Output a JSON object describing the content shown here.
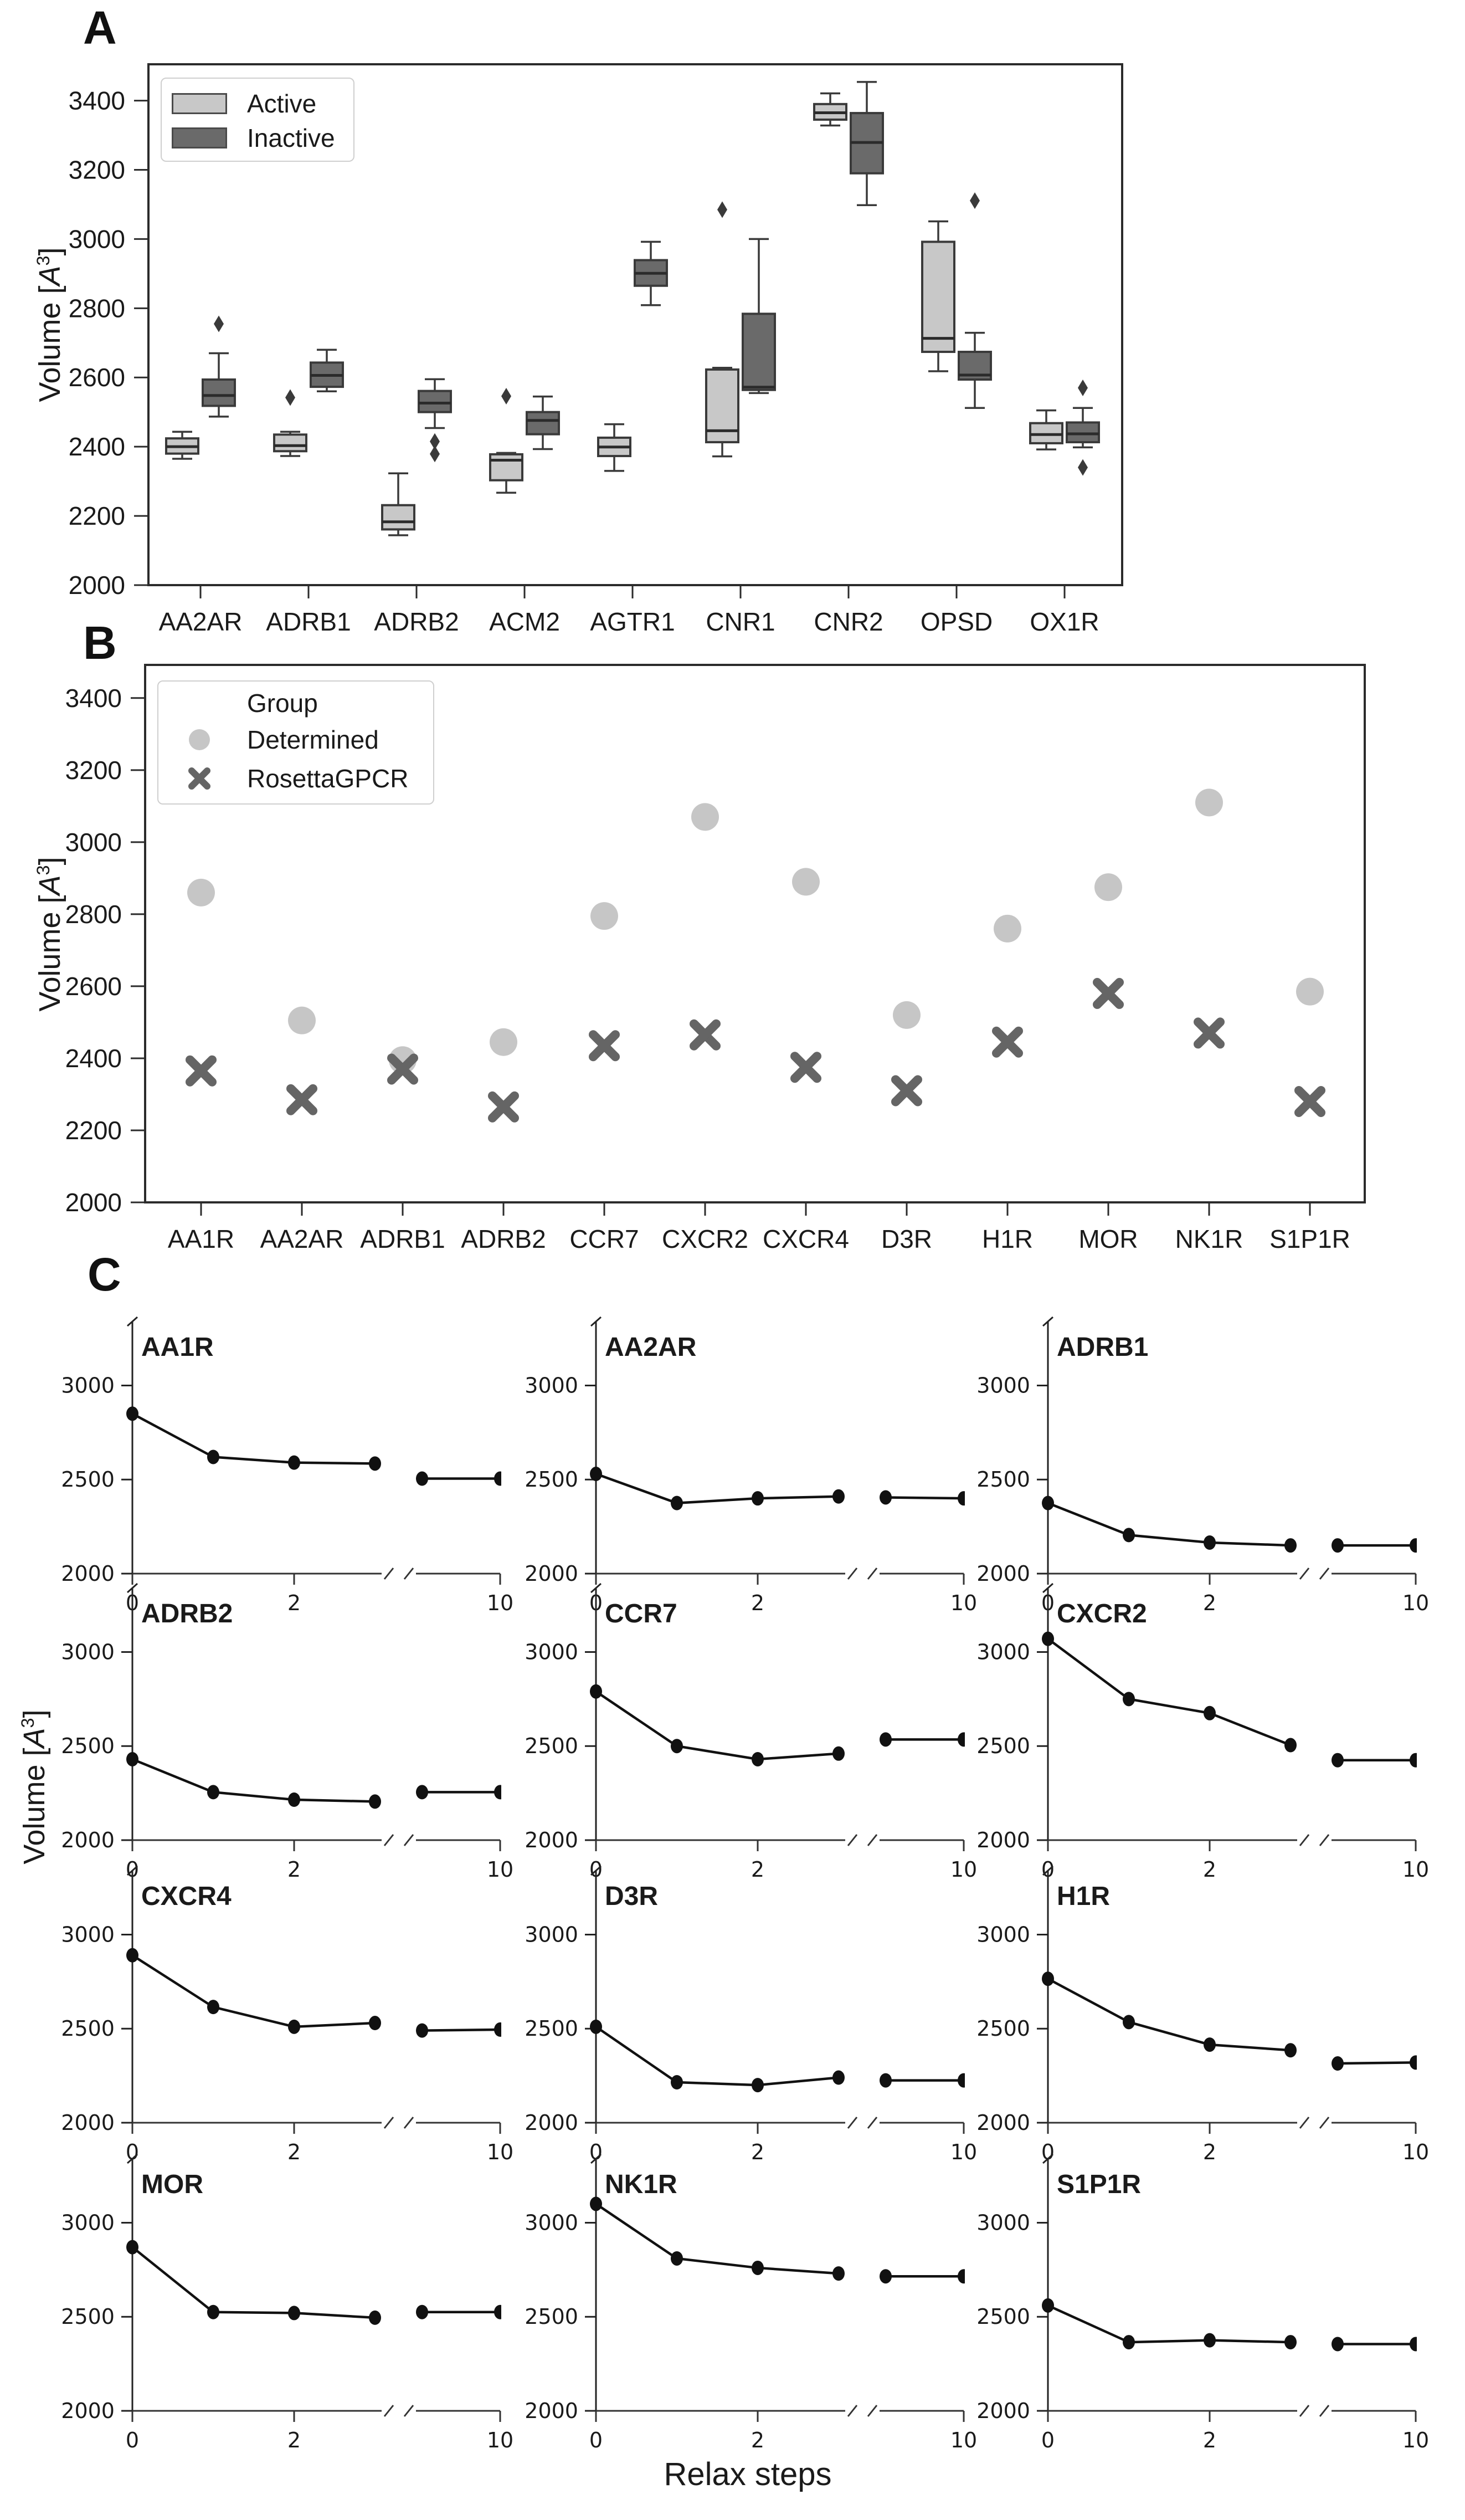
{
  "panels": {
    "a": {
      "letter": "A"
    },
    "b": {
      "letter": "B"
    },
    "c": {
      "letter": "C"
    }
  },
  "ylabel_parts": {
    "pre": "Volume [",
    "var": "A",
    "sup": "3",
    "post": "]"
  },
  "colors": {
    "spine": "#2b2b2b",
    "text": "#1a1a1a",
    "box_edge": "#3a3a3a",
    "active": "#c8c8c8",
    "inactive": "#6a6a6a",
    "determined": "#c6c6c6",
    "rosetta": "#656565",
    "line": "#111111"
  },
  "chart_data": [
    {
      "type": "box",
      "panel": "A",
      "ylabel": "Volume [A³]",
      "ylim": [
        2000,
        3505
      ],
      "y_ticks": [
        3400,
        3200,
        3000,
        2800,
        2600,
        2400,
        2200,
        2000
      ],
      "categories": [
        "AA2AR",
        "ADRB1",
        "ADRB2",
        "ACM2",
        "AGTR1",
        "CNR1",
        "CNR2",
        "OPSD",
        "OX1R"
      ],
      "legend": [
        {
          "label": "Active",
          "color": "#c8c8c8"
        },
        {
          "label": "Inactive",
          "color": "#6a6a6a"
        }
      ],
      "series": [
        {
          "name": "Active",
          "color": "#c8c8c8",
          "boxes": [
            {
              "whislo": 2365,
              "q1": 2380,
              "med": 2400,
              "q3": 2424,
              "whishi": 2443,
              "outliers": []
            },
            {
              "whislo": 2373,
              "q1": 2387,
              "med": 2403,
              "q3": 2435,
              "whishi": 2443,
              "outliers": [
                2542
              ]
            },
            {
              "whislo": 2144,
              "q1": 2161,
              "med": 2183,
              "q3": 2231,
              "whishi": 2323,
              "outliers": []
            },
            {
              "whislo": 2267,
              "q1": 2303,
              "med": 2361,
              "q3": 2378,
              "whishi": 2382,
              "outliers": [
                2546
              ]
            },
            {
              "whislo": 2330,
              "q1": 2373,
              "med": 2399,
              "q3": 2426,
              "whishi": 2465,
              "outliers": []
            },
            {
              "whislo": 2372,
              "q1": 2413,
              "med": 2446,
              "q3": 2623,
              "whishi": 2628,
              "outliers": [
                3085
              ]
            },
            {
              "whislo": 3328,
              "q1": 3345,
              "med": 3365,
              "q3": 3390,
              "whishi": 3421,
              "outliers": []
            },
            {
              "whislo": 2618,
              "q1": 2674,
              "med": 2713,
              "q3": 2992,
              "whishi": 3051,
              "outliers": []
            },
            {
              "whislo": 2392,
              "q1": 2410,
              "med": 2435,
              "q3": 2468,
              "whishi": 2505,
              "outliers": []
            }
          ]
        },
        {
          "name": "Inactive",
          "color": "#6a6a6a",
          "boxes": [
            {
              "whislo": 2487,
              "q1": 2518,
              "med": 2548,
              "q3": 2594,
              "whishi": 2670,
              "outliers": [
                2755
              ]
            },
            {
              "whislo": 2560,
              "q1": 2573,
              "med": 2606,
              "q3": 2643,
              "whishi": 2680,
              "outliers": []
            },
            {
              "whislo": 2454,
              "q1": 2500,
              "med": 2526,
              "q3": 2561,
              "whishi": 2595,
              "outliers": [
                2415,
                2379
              ]
            },
            {
              "whislo": 2393,
              "q1": 2436,
              "med": 2476,
              "q3": 2500,
              "whishi": 2545,
              "outliers": []
            },
            {
              "whislo": 2809,
              "q1": 2865,
              "med": 2901,
              "q3": 2939,
              "whishi": 2992,
              "outliers": []
            },
            {
              "whislo": 2555,
              "q1": 2564,
              "med": 2572,
              "q3": 2784,
              "whishi": 3000,
              "outliers": []
            },
            {
              "whislo": 3098,
              "q1": 3190,
              "med": 3279,
              "q3": 3364,
              "whishi": 3454,
              "outliers": []
            },
            {
              "whislo": 2512,
              "q1": 2594,
              "med": 2607,
              "q3": 2674,
              "whishi": 2729,
              "outliers": [
                3111
              ]
            },
            {
              "whislo": 2398,
              "q1": 2413,
              "med": 2437,
              "q3": 2470,
              "whishi": 2512,
              "outliers": [
                2570,
                2340
              ]
            }
          ]
        }
      ]
    },
    {
      "type": "scatter",
      "panel": "B",
      "ylabel": "Volume [A³]",
      "ylim": [
        2000,
        3492
      ],
      "y_ticks": [
        3400,
        3200,
        3000,
        2800,
        2600,
        2400,
        2200,
        2000
      ],
      "categories": [
        "AA1R",
        "AA2AR",
        "ADRB1",
        "ADRB2",
        "CCR7",
        "CXCR2",
        "CXCR4",
        "D3R",
        "H1R",
        "MOR",
        "NK1R",
        "S1P1R"
      ],
      "legend_title": "Group",
      "series": [
        {
          "name": "Determined",
          "marker": "circle",
          "color": "#c6c6c6",
          "values": [
            2860,
            2505,
            2395,
            2445,
            2795,
            3070,
            2890,
            2520,
            2760,
            2875,
            3110,
            2585
          ]
        },
        {
          "name": "RosettaGPCR",
          "marker": "x",
          "color": "#656565",
          "values": [
            2365,
            2285,
            2370,
            2265,
            2435,
            2465,
            2375,
            2310,
            2445,
            2580,
            2470,
            2280
          ]
        }
      ]
    },
    {
      "type": "line",
      "panel": "C",
      "ylabel": "Volume [A³]",
      "xlabel": "Relax steps",
      "ylim": [
        2000,
        3340
      ],
      "y_ticks": [
        3000,
        2500,
        2000
      ],
      "x_ticks": [
        0,
        2,
        10
      ],
      "steps": [
        0,
        1,
        2,
        3,
        9,
        10
      ],
      "x_axis_break": true,
      "subplots": [
        {
          "title": "AA1R",
          "values": [
            2850,
            2620,
            2590,
            2585,
            2505,
            2505
          ]
        },
        {
          "title": "AA2AR",
          "values": [
            2530,
            2375,
            2400,
            2410,
            2405,
            2400
          ]
        },
        {
          "title": "ADRB1",
          "values": [
            2375,
            2205,
            2165,
            2150,
            2150,
            2150
          ]
        },
        {
          "title": "ADRB2",
          "values": [
            2430,
            2255,
            2215,
            2205,
            2255,
            2255
          ]
        },
        {
          "title": "CCR7",
          "values": [
            2790,
            2500,
            2430,
            2460,
            2535,
            2535
          ]
        },
        {
          "title": "CXCR2",
          "values": [
            3070,
            2750,
            2675,
            2505,
            2425,
            2425
          ]
        },
        {
          "title": "CXCR4",
          "values": [
            2890,
            2615,
            2510,
            2530,
            2490,
            2495
          ]
        },
        {
          "title": "D3R",
          "values": [
            2510,
            2215,
            2200,
            2240,
            2225,
            2225
          ]
        },
        {
          "title": "H1R",
          "values": [
            2765,
            2535,
            2415,
            2385,
            2315,
            2320
          ]
        },
        {
          "title": "MOR",
          "values": [
            2870,
            2525,
            2520,
            2495,
            2525,
            2525
          ]
        },
        {
          "title": "NK1R",
          "values": [
            3100,
            2810,
            2760,
            2730,
            2715,
            2715
          ]
        },
        {
          "title": "S1P1R",
          "values": [
            2560,
            2365,
            2375,
            2365,
            2355,
            2355
          ]
        }
      ]
    }
  ]
}
